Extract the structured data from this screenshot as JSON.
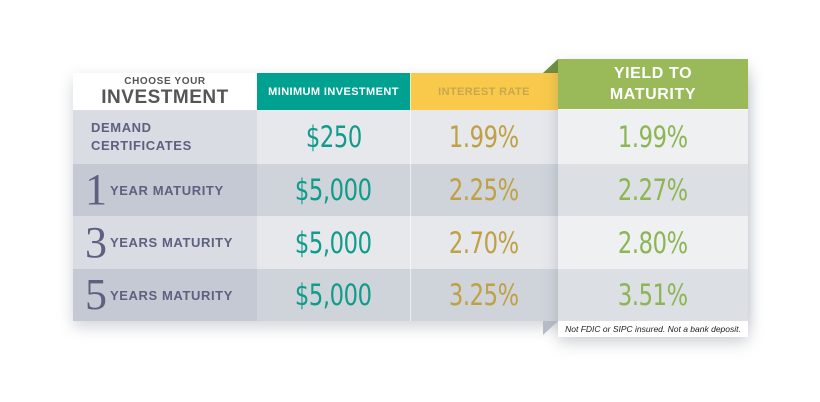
{
  "header": {
    "choose_label": "CHOOSE YOUR",
    "investment_label": "INVESTMENT",
    "minimum_investment": "MINIMUM INVESTMENT",
    "interest_rate": "INTEREST RATE",
    "yield_line1": "YIELD TO",
    "yield_line2": "MATURITY"
  },
  "rows": [
    {
      "label_line1": "DEMAND",
      "label_line2": "CERTIFICATES",
      "minimum": "$250",
      "interest": "1.99%",
      "yield": "1.99%"
    },
    {
      "number": "1",
      "label": "YEAR MATURITY",
      "minimum": "$5,000",
      "interest": "2.25%",
      "yield": "2.27%"
    },
    {
      "number": "3",
      "label": "YEARS MATURITY",
      "minimum": "$5,000",
      "interest": "2.70%",
      "yield": "2.80%"
    },
    {
      "number": "5",
      "label": "YEARS MATURITY",
      "minimum": "$5,000",
      "interest": "3.25%",
      "yield": "3.51%"
    }
  ],
  "footnote": "Not FDIC or SIPC insured. Not a bank deposit.",
  "colors": {
    "minimum_header": "#00a190",
    "interest_header": "#f8c94a",
    "yield_header": "#9ab958",
    "minimum_text": "#119b8a",
    "interest_text": "#bfa044",
    "yield_text": "#8db553",
    "label_text": "#5e6080"
  }
}
